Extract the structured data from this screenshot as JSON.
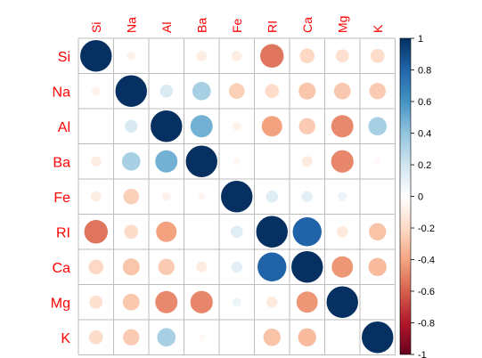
{
  "chart_data": {
    "type": "heatmap",
    "variables": [
      "Si",
      "Na",
      "Al",
      "Ba",
      "Fe",
      "RI",
      "Ca",
      "Mg",
      "K"
    ],
    "matrix": [
      [
        1.0,
        -0.07,
        0.0,
        -0.1,
        -0.1,
        -0.54,
        -0.21,
        -0.17,
        -0.19
      ],
      [
        -0.07,
        1.0,
        0.16,
        0.33,
        -0.24,
        -0.19,
        -0.28,
        -0.27,
        -0.26
      ],
      [
        0.0,
        0.16,
        1.0,
        0.48,
        -0.07,
        -0.41,
        -0.26,
        -0.48,
        0.33
      ],
      [
        -0.1,
        0.33,
        0.48,
        1.0,
        -0.05,
        0.0,
        -0.11,
        -0.49,
        -0.04
      ],
      [
        -0.1,
        -0.24,
        -0.07,
        -0.05,
        1.0,
        0.14,
        0.12,
        0.08,
        0.0
      ],
      [
        -0.54,
        -0.19,
        -0.41,
        0.0,
        0.14,
        1.0,
        0.81,
        -0.12,
        -0.29
      ],
      [
        -0.21,
        -0.28,
        -0.26,
        -0.11,
        0.12,
        0.81,
        1.0,
        -0.44,
        -0.32
      ],
      [
        -0.17,
        -0.27,
        -0.48,
        -0.49,
        0.08,
        -0.12,
        -0.44,
        1.0,
        0.0
      ],
      [
        -0.19,
        -0.26,
        0.33,
        -0.04,
        0.0,
        -0.29,
        -0.32,
        0.0,
        1.0
      ]
    ],
    "colorbar": {
      "range": [
        -1,
        1
      ],
      "ticks": [
        "1",
        "0.8",
        "0.6",
        "0.4",
        "0.2",
        "0",
        "-0.2",
        "-0.4",
        "-0.6",
        "-0.8",
        "-1"
      ]
    },
    "colors": {
      "label": "#ff0000",
      "grid": "#bebebe",
      "scale": [
        "#67001f",
        "#b2182b",
        "#d6604d",
        "#f4a582",
        "#fddbc7",
        "#ffffff",
        "#d1e5f0",
        "#92c5de",
        "#4393c3",
        "#2166ac",
        "#053061"
      ]
    }
  }
}
